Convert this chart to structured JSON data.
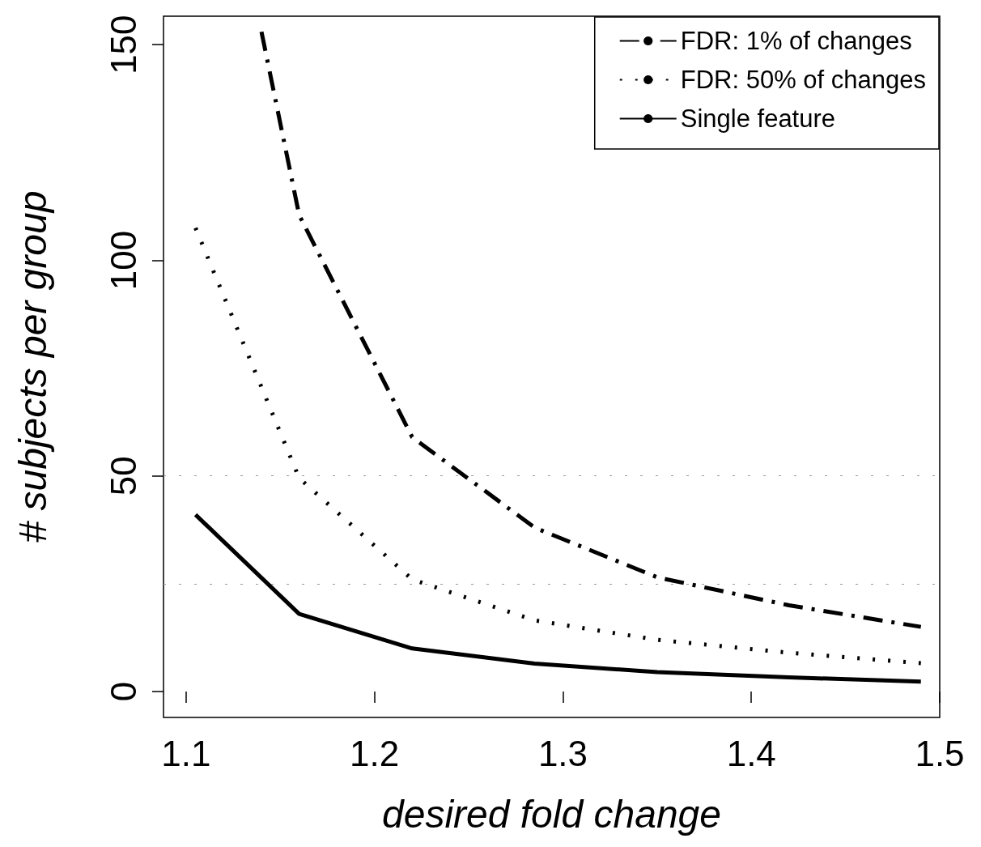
{
  "chart_data": {
    "type": "line",
    "xlabel": "desired fold change",
    "ylabel": "# subjects per group",
    "xlim": [
      1.088,
      1.5
    ],
    "ylim": [
      -6,
      156.6
    ],
    "xticks": [
      1.1,
      1.2,
      1.3,
      1.4,
      1.5
    ],
    "yticks": [
      0,
      50,
      100,
      150
    ],
    "grid": false,
    "legend": "top right",
    "marker": "none",
    "ref_lines": [
      {
        "axis": "y",
        "value": 25,
        "color": "#999999",
        "line_style": "dotted"
      },
      {
        "axis": "y",
        "value": 50,
        "color": "#999999",
        "line_style": "dotted"
      }
    ],
    "series": [
      {
        "name": "FDR: 1% of changes",
        "color": "#000000",
        "line_style": "dashed",
        "x": [
          1.14,
          1.16,
          1.22,
          1.285,
          1.35,
          1.42,
          1.49
        ],
        "values": [
          153,
          110.5,
          59,
          38,
          26.5,
          20,
          15
        ]
      },
      {
        "name": "FDR: 50% of changes",
        "color": "#000000",
        "line_style": "dotted",
        "x": [
          1.105,
          1.16,
          1.22,
          1.285,
          1.35,
          1.42,
          1.49
        ],
        "values": [
          107.5,
          49.5,
          26,
          16.5,
          12,
          9,
          6.6
        ]
      },
      {
        "name": "Single feature",
        "color": "#000000",
        "line_style": "solid",
        "x": [
          1.105,
          1.16,
          1.22,
          1.285,
          1.35,
          1.42,
          1.49
        ],
        "values": [
          41,
          18,
          10,
          6.5,
          4.5,
          3.3,
          2.3
        ]
      }
    ]
  }
}
